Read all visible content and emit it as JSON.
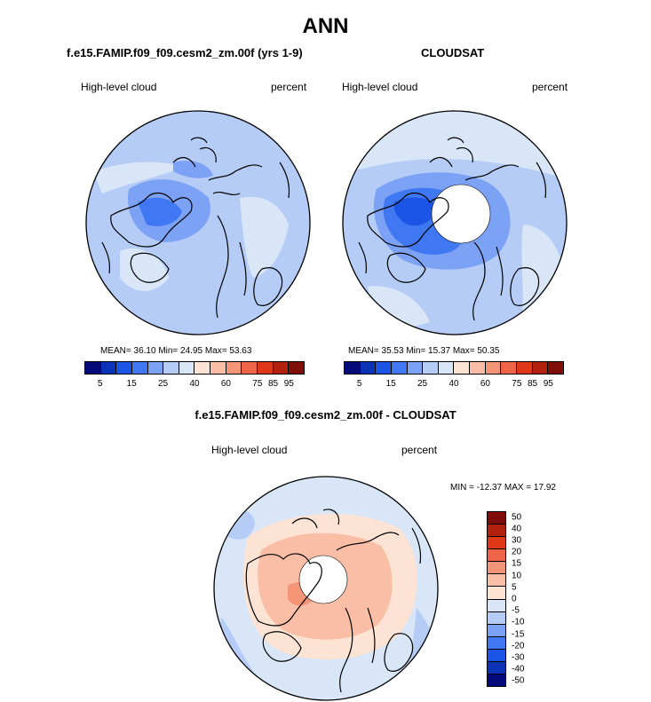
{
  "title": "ANN",
  "panels": [
    {
      "case_label": "f.e15.FAMIP.f09_f09.cesm2_zm.00f (yrs 1-9)",
      "field_label": "High-level cloud",
      "units_label": "percent",
      "stats": "MEAN=  36.10  Min=  24.95  Max=  53.63"
    },
    {
      "case_label": "CLOUDSAT",
      "field_label": "High-level cloud",
      "units_label": "percent",
      "stats": "MEAN=  35.53  Min=  15.37  Max=  50.35"
    }
  ],
  "top_colorbar": {
    "colors": [
      "#040a7a",
      "#0a33b8",
      "#1a55e6",
      "#3f78f2",
      "#7ca2f5",
      "#b4ccf6",
      "#d8e6f7",
      "#fde3d4",
      "#f9bea5",
      "#f59577",
      "#ef6446",
      "#dd3718",
      "#b2200e",
      "#7e0e06"
    ],
    "tick_labels": [
      "5",
      "15",
      "25",
      "40",
      "60",
      "75",
      "85",
      "95"
    ]
  },
  "diff_panel": {
    "title": "f.e15.FAMIP.f09_f09.cesm2_zm.00f - CLOUDSAT",
    "field_label": "High-level cloud",
    "units_label": "percent",
    "minmax": "MIN = -12.37 MAX =  17.92"
  },
  "diff_colorbar": {
    "colors_top_to_bottom": [
      "#7e0e06",
      "#b2200e",
      "#dd3718",
      "#ef6446",
      "#f59577",
      "#f9bea5",
      "#fde3d4",
      "#d8e6f7",
      "#b4ccf6",
      "#7ca2f5",
      "#3f78f2",
      "#1a55e6",
      "#0a33b8",
      "#040a7a"
    ],
    "tick_labels": [
      "50",
      "40",
      "30",
      "20",
      "15",
      "10",
      "5",
      "0",
      "-5",
      "-10",
      "-15",
      "-20",
      "-30",
      "-40",
      "-50"
    ]
  }
}
